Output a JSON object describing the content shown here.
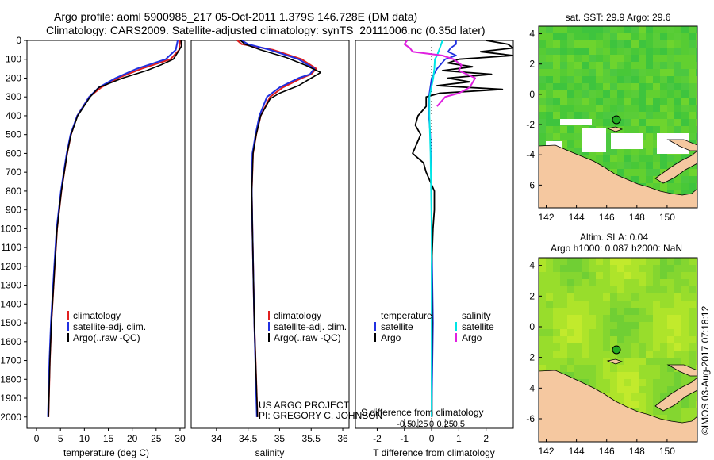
{
  "header": {
    "line1": "Argo profile: aoml 5900985_217 05-Oct-2011 1.379S 146.728E (DM data)",
    "line2": "Climatology: CARS2009. Satellite-adjusted climatology: synTS_20111006.nc (0.35d later)"
  },
  "colors": {
    "climatology": "#e02020",
    "satellite": "#2030e0",
    "argo": "#000000",
    "sal_satellite": "#00e5e5",
    "sal_argo": "#e020e0",
    "land": "#f5c8a0"
  },
  "chart_data": [
    {
      "type": "line",
      "name": "temperature-profile",
      "xlabel": "temperature (deg C)",
      "xlim": [
        -2,
        31
      ],
      "xticks": [
        0,
        5,
        10,
        15,
        20,
        25,
        30
      ],
      "ylim": [
        0,
        2060
      ],
      "yticks": [
        0,
        100,
        200,
        300,
        400,
        500,
        600,
        700,
        800,
        900,
        1000,
        1100,
        1200,
        1300,
        1400,
        1500,
        1600,
        1700,
        1800,
        1900,
        2000
      ],
      "legend": [
        "climatology",
        "satellite-adj. clim.",
        "Argo(..raw -QC)"
      ],
      "series": [
        {
          "name": "climatology",
          "depth": [
            0,
            50,
            100,
            150,
            200,
            250,
            300,
            400,
            500,
            600,
            700,
            800,
            1000,
            1200,
            1500,
            1700,
            2000
          ],
          "values": [
            30,
            29.8,
            28,
            22,
            17,
            13.5,
            11,
            8.5,
            7.2,
            6.4,
            5.8,
            5.2,
            4.3,
            3.8,
            3.1,
            2.8,
            2.5
          ]
        },
        {
          "name": "satellite-adj. clim.",
          "depth": [
            0,
            50,
            100,
            150,
            200,
            250,
            300,
            400,
            500,
            600,
            700,
            800,
            1000,
            1200,
            1500,
            1700,
            2000
          ],
          "values": [
            29.5,
            29.1,
            27,
            21,
            16.5,
            13,
            11,
            8.5,
            7.1,
            6.3,
            5.7,
            5.1,
            4.2,
            3.7,
            3.0,
            2.7,
            2.4
          ]
        },
        {
          "name": "Argo(..raw -QC)",
          "depth": [
            0,
            30,
            60,
            100,
            130,
            160,
            200,
            250,
            300,
            400,
            500,
            600,
            700,
            800,
            1000,
            1200,
            1500,
            1700,
            2000
          ],
          "values": [
            30.2,
            30.3,
            29.6,
            28.6,
            26,
            23,
            18,
            13,
            11.2,
            8.6,
            7.2,
            6.4,
            5.8,
            5.2,
            4.3,
            3.8,
            3.1,
            2.8,
            2.5
          ]
        }
      ]
    },
    {
      "type": "line",
      "name": "salinity-profile",
      "xlabel": "salinity",
      "xlim": [
        33.6,
        36.1
      ],
      "xticks": [
        34,
        34.5,
        35,
        35.5,
        36
      ],
      "ylim": [
        0,
        2060
      ],
      "legend": [
        "climatology",
        "satellite-adj. clim.",
        "Argo(..raw -QC)"
      ],
      "series": [
        {
          "name": "climatology",
          "depth": [
            0,
            20,
            50,
            100,
            150,
            180,
            200,
            250,
            300,
            400,
            500,
            600,
            800,
            1000,
            1500,
            2000
          ],
          "values": [
            34.33,
            34.4,
            34.9,
            35.35,
            35.58,
            35.5,
            35.35,
            35.05,
            34.85,
            34.7,
            34.63,
            34.58,
            34.56,
            34.57,
            34.6,
            34.65
          ]
        },
        {
          "name": "satellite-adj. clim.",
          "depth": [
            0,
            20,
            50,
            100,
            150,
            180,
            200,
            250,
            300,
            400,
            500,
            600,
            800,
            1000,
            1500,
            2000
          ],
          "values": [
            34.4,
            34.5,
            34.85,
            35.3,
            35.55,
            35.48,
            35.3,
            35.0,
            34.8,
            34.68,
            34.62,
            34.57,
            34.56,
            34.57,
            34.6,
            34.64
          ]
        },
        {
          "name": "Argo(..raw -QC)",
          "depth": [
            0,
            20,
            50,
            90,
            130,
            170,
            200,
            240,
            280,
            310,
            400,
            500,
            600,
            800,
            1000,
            1500,
            2000
          ],
          "values": [
            34.38,
            34.45,
            34.7,
            35.1,
            35.4,
            35.65,
            35.5,
            35.3,
            35.0,
            34.85,
            34.7,
            34.63,
            34.58,
            34.56,
            34.57,
            34.6,
            34.65
          ]
        }
      ],
      "annotations": [
        "US ARGO PROJECT",
        "PI: GREGORY C. JOHNSON"
      ]
    },
    {
      "type": "line",
      "name": "difference-profile",
      "xlabel": "T difference from climatology",
      "xlabel_top": "S difference from climatology",
      "xlim": [
        -2.8,
        3.0
      ],
      "xticks": [
        -2,
        -1,
        0,
        1,
        2
      ],
      "sticks": [
        -0.5,
        -0.25,
        0,
        0.25,
        0.5
      ],
      "stick_labels": [
        "-0.5",
        "-0.25",
        "0",
        "0.25",
        "0.5"
      ],
      "legend_title_t": "temperature",
      "legend_title_s": "salinity",
      "legend": [
        "satellite",
        "Argo",
        "satellite",
        "Argo"
      ],
      "series": [
        {
          "name": "T satellite",
          "depth": [
            0,
            20,
            40,
            60,
            80,
            100,
            150,
            200,
            300,
            400,
            500,
            800,
            1000,
            1500,
            2000
          ],
          "values": [
            0.9,
            0.9,
            0.7,
            0.6,
            0.9,
            0.5,
            0.2,
            0.0,
            -0.1,
            -0.1,
            -0.05,
            0.0,
            0.0,
            0.05,
            0.0
          ]
        },
        {
          "name": "T Argo",
          "depth": [
            0,
            20,
            40,
            60,
            80,
            100,
            120,
            140,
            160,
            180,
            200,
            220,
            240,
            260,
            280,
            300,
            350,
            400,
            450,
            500,
            550,
            600,
            650,
            700,
            800,
            900,
            1000,
            1200,
            1500,
            1800,
            2000
          ],
          "values": [
            2.0,
            2.8,
            3.0,
            1.8,
            3.0,
            1.0,
            0.6,
            1.5,
            0.4,
            2.2,
            0.6,
            1.4,
            0.2,
            2.6,
            0.3,
            -0.2,
            -0.2,
            -0.5,
            -0.6,
            -0.4,
            -0.55,
            -0.7,
            -0.3,
            -0.2,
            0.1,
            0.1,
            0.05,
            0.0,
            0.02,
            0.0,
            0.01
          ]
        },
        {
          "name": "S satellite",
          "depth": [
            0,
            40,
            80,
            100,
            150,
            200,
            300,
            400,
            600,
            1000,
            2000
          ],
          "values": [
            0.2,
            0.15,
            0.1,
            0.06,
            0.05,
            0.03,
            -0.04,
            -0.04,
            -0.02,
            0.0,
            0.0
          ]
        },
        {
          "name": "S Argo",
          "depth": [
            0,
            20,
            40,
            60,
            80,
            100,
            130,
            160,
            200,
            250,
            280,
            300,
            350
          ],
          "values": [
            -0.45,
            -0.5,
            -0.4,
            -0.35,
            0.2,
            0.4,
            0.55,
            0.5,
            0.8,
            0.7,
            0.5,
            0.25,
            0.1
          ]
        }
      ]
    },
    {
      "type": "heatmap",
      "name": "sst-map",
      "title": "sat. SST: 29.9 Argo: 29.6",
      "xlim": [
        141.5,
        152
      ],
      "ylim": [
        -7.5,
        4.5
      ],
      "xticks": [
        142,
        144,
        146,
        148,
        150
      ],
      "yticks": [
        -6,
        -4,
        -2,
        0,
        2,
        4
      ],
      "marker": {
        "lon": 146.728,
        "lat": -1.379
      }
    },
    {
      "type": "heatmap",
      "name": "sla-map",
      "title": "Altim. SLA: 0.04",
      "subtitle": "Argo h1000: 0.087 h2000: NaN",
      "xlim": [
        141.5,
        152
      ],
      "ylim": [
        -7.5,
        4.5
      ],
      "xticks": [
        142,
        144,
        146,
        148,
        150
      ],
      "yticks": [
        -6,
        -4,
        -2,
        0,
        2,
        4
      ],
      "marker": {
        "lon": 146.728,
        "lat": -1.379
      }
    }
  ],
  "credit": "©IMOS 03-Aug-2017 07:18:12"
}
